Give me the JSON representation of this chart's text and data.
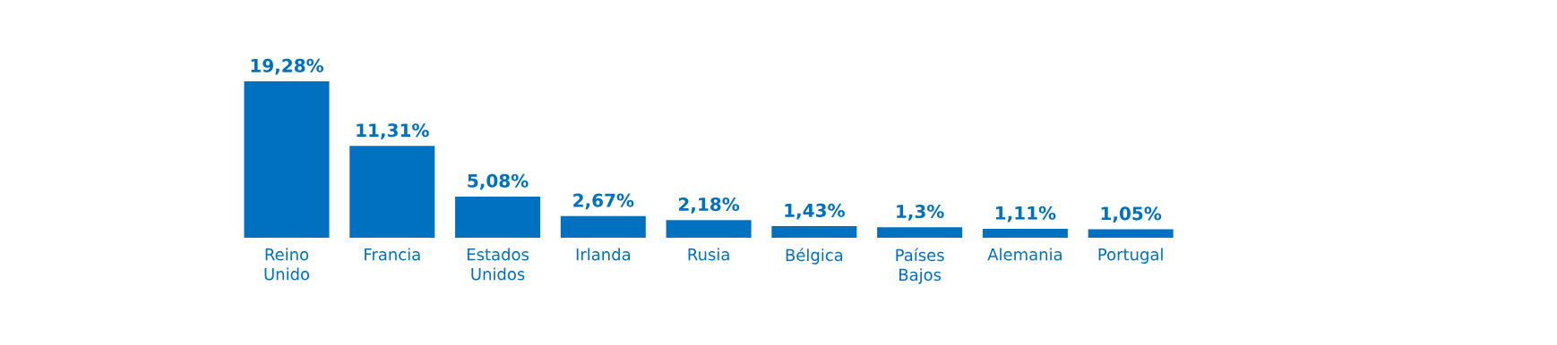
{
  "chart_data": {
    "type": "bar",
    "categories": [
      "Reino Unido",
      "Francia",
      "Estados Unidos",
      "Irlanda",
      "Rusia",
      "Bélgica",
      "Países Bajos",
      "Alemania",
      "Portugal"
    ],
    "values": [
      19.28,
      11.31,
      5.08,
      2.67,
      2.18,
      1.43,
      1.3,
      1.11,
      1.05
    ],
    "value_labels": [
      "19,28%",
      "11,31%",
      "5,08%",
      "2,67%",
      "2,18%",
      "1,43%",
      "1,3%",
      "1,11%",
      "1,05%"
    ],
    "color": "#0070c0"
  }
}
